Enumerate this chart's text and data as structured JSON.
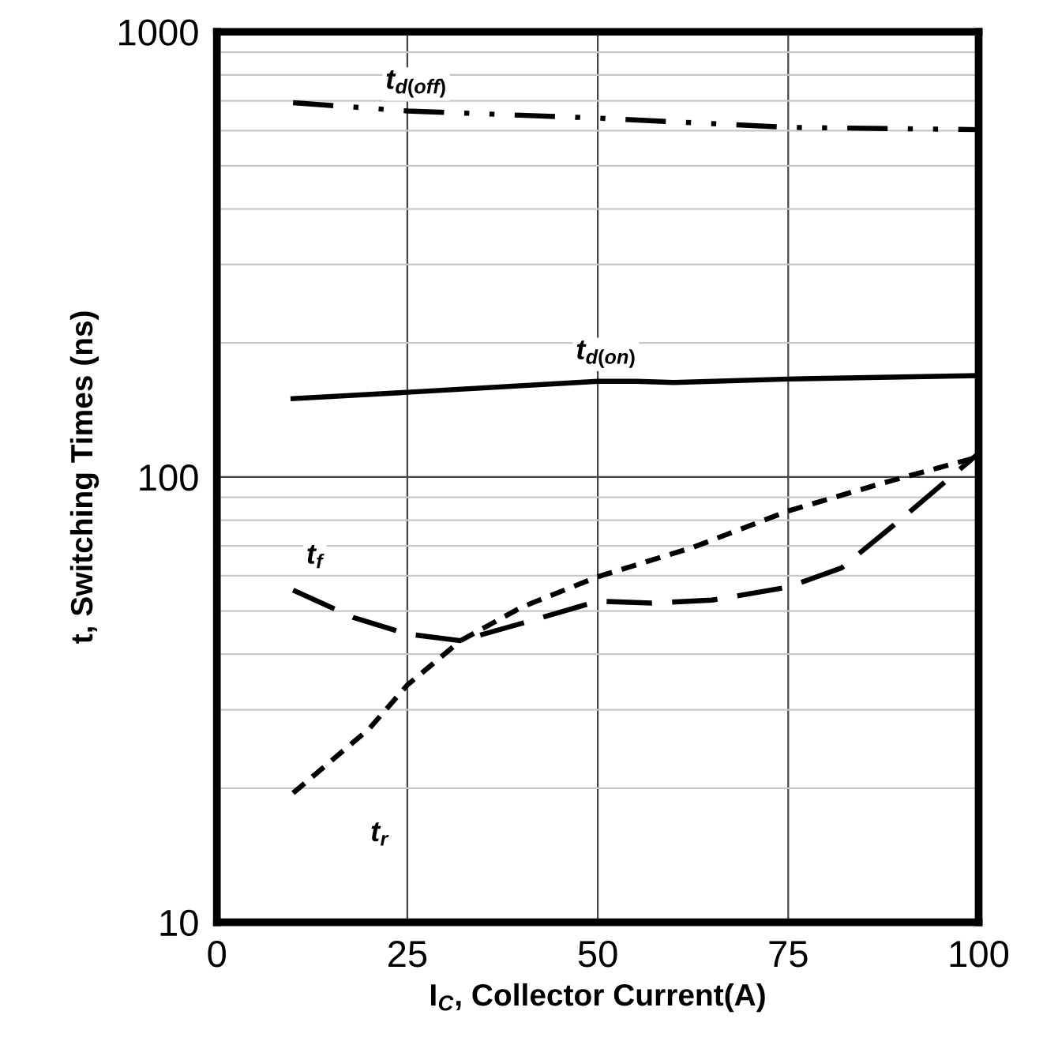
{
  "chart_data": {
    "type": "line",
    "xlabel": "I$_{C}$, Collector Current(A)",
    "ylabel": "t, Switching Times (ns)",
    "log": "y",
    "xlim": [
      0,
      100
    ],
    "xticks": [
      0,
      25,
      50,
      75,
      100
    ],
    "ylim": [
      10,
      1000
    ],
    "yticks": [
      10,
      100,
      1000
    ],
    "grid": true,
    "legend": false,
    "marker": "none",
    "series": [
      {
        "name": "t$_{d(off)}$",
        "color": "#000000",
        "line_style": "dashdotdot",
        "x": [
          10,
          25,
          50,
          75,
          100
        ],
        "values": [
          693,
          664,
          640,
          610,
          603
        ]
      },
      {
        "name": "t$_{d(on)}$",
        "color": "#000000",
        "line_style": "solid",
        "x": [
          10,
          25,
          50,
          55,
          60,
          75,
          100
        ],
        "values": [
          150,
          155,
          164,
          164,
          163,
          166,
          169
        ]
      },
      {
        "name": "t$_{f}$",
        "color": "#000000",
        "line_style": "longdash",
        "x": [
          10,
          18,
          25,
          32,
          40,
          50,
          57,
          65,
          75,
          82,
          90,
          100
        ],
        "values": [
          55.7,
          48.3,
          44.4,
          42.9,
          46.9,
          52.6,
          52.1,
          52.9,
          56.6,
          62.5,
          80.9,
          113
        ]
      },
      {
        "name": "t$_{r}$",
        "color": "#000000",
        "line_style": "dashed",
        "x": [
          10,
          20,
          25,
          32,
          40,
          50,
          62.5,
          75,
          87.5,
          100
        ],
        "values": [
          19.5,
          27.2,
          34.1,
          42.9,
          51,
          59.7,
          69.5,
          83.9,
          97,
          111
        ]
      }
    ]
  }
}
